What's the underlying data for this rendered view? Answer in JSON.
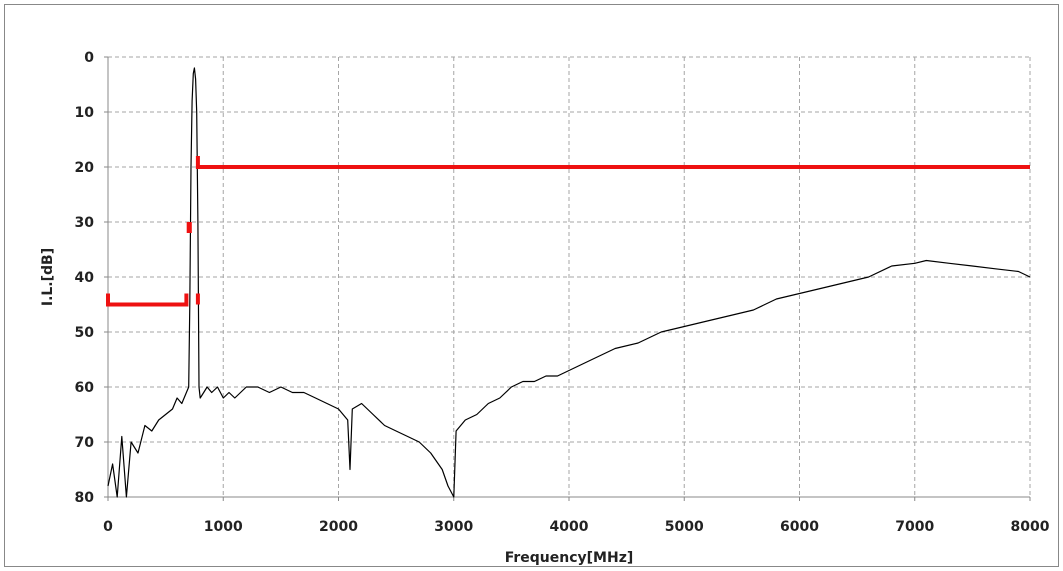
{
  "chart_data": {
    "type": "line",
    "title": "",
    "xlabel": "Frequency[MHz]",
    "ylabel": "I.L.[dB]",
    "xlim": [
      0,
      8000
    ],
    "ylim": [
      0,
      80
    ],
    "y_inverted": true,
    "grid": true,
    "grid_style": "dashed",
    "xticks": [
      0,
      1000,
      2000,
      3000,
      4000,
      5000,
      6000,
      7000,
      8000
    ],
    "xtick_labels": [
      "0",
      "1000",
      "2000",
      "3000",
      "4000",
      "5000",
      "6000",
      "7000",
      "8000"
    ],
    "yticks": [
      0,
      10,
      20,
      30,
      40,
      50,
      60,
      70,
      80
    ],
    "ytick_labels": [
      "0",
      "10",
      "20",
      "30",
      "40",
      "50",
      "60",
      "70",
      "80"
    ],
    "colors": {
      "measured": "#000000",
      "spec": "#ee1111",
      "grid": "#a6a6a6"
    },
    "series": [
      {
        "key": "measured",
        "color": "#000000",
        "points": [
          [
            0,
            78
          ],
          [
            40,
            74
          ],
          [
            80,
            80
          ],
          [
            120,
            69
          ],
          [
            160,
            80
          ],
          [
            200,
            70
          ],
          [
            260,
            72
          ],
          [
            320,
            67
          ],
          [
            380,
            68
          ],
          [
            440,
            66
          ],
          [
            500,
            65
          ],
          [
            560,
            64
          ],
          [
            600,
            62
          ],
          [
            640,
            63
          ],
          [
            680,
            61
          ],
          [
            700,
            60
          ],
          [
            710,
            45
          ],
          [
            720,
            20
          ],
          [
            730,
            8
          ],
          [
            740,
            3
          ],
          [
            750,
            2
          ],
          [
            760,
            4
          ],
          [
            770,
            10
          ],
          [
            780,
            30
          ],
          [
            790,
            60
          ],
          [
            800,
            62
          ],
          [
            830,
            61
          ],
          [
            860,
            60
          ],
          [
            900,
            61
          ],
          [
            950,
            60
          ],
          [
            1000,
            62
          ],
          [
            1050,
            61
          ],
          [
            1100,
            62
          ],
          [
            1200,
            60
          ],
          [
            1300,
            60
          ],
          [
            1400,
            61
          ],
          [
            1500,
            60
          ],
          [
            1600,
            61
          ],
          [
            1700,
            61
          ],
          [
            1800,
            62
          ],
          [
            1900,
            63
          ],
          [
            2000,
            64
          ],
          [
            2080,
            66
          ],
          [
            2100,
            75
          ],
          [
            2120,
            64
          ],
          [
            2200,
            63
          ],
          [
            2300,
            65
          ],
          [
            2400,
            67
          ],
          [
            2500,
            68
          ],
          [
            2600,
            69
          ],
          [
            2700,
            70
          ],
          [
            2800,
            72
          ],
          [
            2900,
            75
          ],
          [
            2950,
            78
          ],
          [
            3000,
            80
          ],
          [
            3020,
            68
          ],
          [
            3100,
            66
          ],
          [
            3200,
            65
          ],
          [
            3300,
            63
          ],
          [
            3400,
            62
          ],
          [
            3500,
            60
          ],
          [
            3600,
            59
          ],
          [
            3700,
            59
          ],
          [
            3800,
            58
          ],
          [
            3900,
            58
          ],
          [
            4000,
            57
          ],
          [
            4200,
            55
          ],
          [
            4400,
            53
          ],
          [
            4600,
            52
          ],
          [
            4800,
            50
          ],
          [
            5000,
            49
          ],
          [
            5200,
            48
          ],
          [
            5400,
            47
          ],
          [
            5600,
            46
          ],
          [
            5800,
            44
          ],
          [
            6000,
            43
          ],
          [
            6200,
            42
          ],
          [
            6400,
            41
          ],
          [
            6600,
            40
          ],
          [
            6800,
            38
          ],
          [
            7000,
            37.5
          ],
          [
            7100,
            37
          ],
          [
            7300,
            37.5
          ],
          [
            7500,
            38
          ],
          [
            7700,
            38.5
          ],
          [
            7900,
            39
          ],
          [
            8000,
            40
          ]
        ]
      },
      {
        "key": "spec",
        "color": "#ee1111",
        "segments": [
          [
            [
              0,
              43
            ],
            [
              0,
              45
            ],
            [
              680,
              45
            ],
            [
              680,
              43
            ]
          ],
          [
            [
              700,
              30
            ],
            [
              700,
              32
            ]
          ],
          [
            [
              710,
              30
            ],
            [
              710,
              32
            ]
          ],
          [
            [
              780,
              43
            ],
            [
              780,
              45
            ]
          ],
          [
            [
              780,
              18
            ],
            [
              780,
              20
            ],
            [
              8000,
              20
            ]
          ]
        ]
      }
    ]
  }
}
